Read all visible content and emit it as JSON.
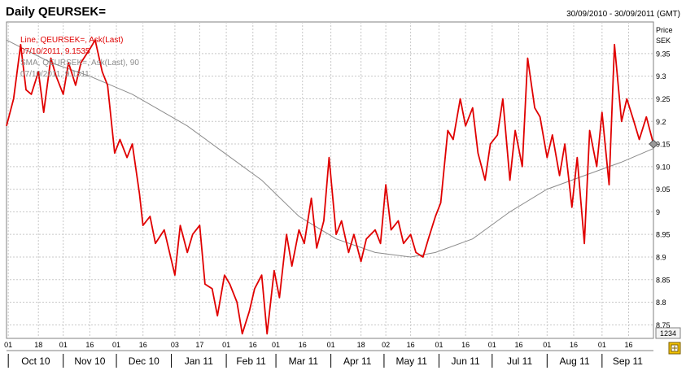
{
  "header": {
    "title": "Daily QEURSEK=",
    "date_range": "30/09/2010 - 30/09/2011 (GMT)"
  },
  "legend": {
    "line1": "Line, QEURSEK=, Ask(Last)",
    "line1_value": "07/10/2011, 9.1535",
    "line2": "SMA, QEURSEK=, Ask(Last), 90",
    "line2_value": "07/10/2011, 9.1311"
  },
  "axis": {
    "price_label": "Price",
    "currency_label": "SEK",
    "scale_box": "1234"
  },
  "colors": {
    "price_line": "#e00000",
    "sma_line": "#8c8c8c",
    "grid": "#c8c8c8",
    "marker": "#999999"
  },
  "icons": {
    "toolbar": "zoom-tool-icon"
  },
  "chart_data": {
    "type": "line",
    "title": "Daily QEURSEK=",
    "ylabel": "Price SEK",
    "ylim": [
      8.72,
      9.42
    ],
    "y_ticks": [
      "8.75",
      "8.8",
      "8.85",
      "8.9",
      "8.95",
      "9",
      "9.05",
      "9.10",
      "9.15",
      "9.2",
      "9.25",
      "9.3",
      "9.35"
    ],
    "x_tick_labels": [
      "01",
      "18",
      "01",
      "16",
      "01",
      "16",
      "03",
      "17",
      "01",
      "16",
      "01",
      "16",
      "01",
      "18",
      "02",
      "16",
      "01",
      "16",
      "01",
      "16",
      "01",
      "16",
      "01",
      "16"
    ],
    "month_labels": [
      "Oct 10",
      "Nov 10",
      "Dec 10",
      "Jan 11",
      "Feb 11",
      "Mar 11",
      "Apr 11",
      "May 11",
      "Jun 11",
      "Jul 11",
      "Aug 11",
      "Sep 11"
    ],
    "grid": true,
    "series": [
      {
        "name": "Line, QEURSEK=, Ask(Last)",
        "x": [
          "2010-09-30",
          "2010-10-04",
          "2010-10-08",
          "2010-10-11",
          "2010-10-14",
          "2010-10-18",
          "2010-10-21",
          "2010-10-25",
          "2010-10-28",
          "2010-11-01",
          "2010-11-04",
          "2010-11-08",
          "2010-11-11",
          "2010-11-16",
          "2010-11-19",
          "2010-11-23",
          "2010-11-26",
          "2010-11-30",
          "2010-12-03",
          "2010-12-07",
          "2010-12-10",
          "2010-12-14",
          "2010-12-16",
          "2010-12-20",
          "2010-12-23",
          "2010-12-28",
          "2011-01-03",
          "2011-01-06",
          "2011-01-10",
          "2011-01-13",
          "2011-01-17",
          "2011-01-20",
          "2011-01-24",
          "2011-01-27",
          "2011-01-31",
          "2011-02-03",
          "2011-02-07",
          "2011-02-10",
          "2011-02-14",
          "2011-02-17",
          "2011-02-21",
          "2011-02-24",
          "2011-02-28",
          "2011-03-03",
          "2011-03-07",
          "2011-03-10",
          "2011-03-14",
          "2011-03-17",
          "2011-03-21",
          "2011-03-24",
          "2011-03-28",
          "2011-03-31",
          "2011-04-04",
          "2011-04-07",
          "2011-04-11",
          "2011-04-14",
          "2011-04-18",
          "2011-04-21",
          "2011-04-26",
          "2011-04-29",
          "2011-05-02",
          "2011-05-05",
          "2011-05-09",
          "2011-05-12",
          "2011-05-16",
          "2011-05-19",
          "2011-05-23",
          "2011-05-26",
          "2011-05-30",
          "2011-06-02",
          "2011-06-06",
          "2011-06-09",
          "2011-06-13",
          "2011-06-16",
          "2011-06-20",
          "2011-06-23",
          "2011-06-27",
          "2011-06-30",
          "2011-07-04",
          "2011-07-07",
          "2011-07-11",
          "2011-07-14",
          "2011-07-18",
          "2011-07-21",
          "2011-07-25",
          "2011-07-28",
          "2011-08-01",
          "2011-08-04",
          "2011-08-08",
          "2011-08-11",
          "2011-08-15",
          "2011-08-18",
          "2011-08-22",
          "2011-08-25",
          "2011-08-29",
          "2011-09-01",
          "2011-09-05",
          "2011-09-08",
          "2011-09-12",
          "2011-09-15",
          "2011-09-19",
          "2011-09-22",
          "2011-09-26",
          "2011-09-30"
        ],
        "y": [
          9.19,
          9.25,
          9.37,
          9.27,
          9.26,
          9.31,
          9.22,
          9.34,
          9.3,
          9.26,
          9.33,
          9.28,
          9.33,
          9.36,
          9.38,
          9.31,
          9.28,
          9.13,
          9.16,
          9.12,
          9.15,
          9.04,
          8.97,
          8.99,
          8.93,
          8.96,
          8.86,
          8.97,
          8.91,
          8.95,
          8.97,
          8.84,
          8.83,
          8.77,
          8.86,
          8.84,
          8.8,
          8.73,
          8.78,
          8.83,
          8.86,
          8.73,
          8.87,
          8.81,
          8.95,
          8.88,
          8.96,
          8.93,
          9.03,
          8.92,
          8.98,
          9.12,
          8.95,
          8.98,
          8.91,
          8.95,
          8.89,
          8.94,
          8.96,
          8.93,
          9.06,
          8.96,
          8.98,
          8.93,
          8.95,
          8.91,
          8.9,
          8.94,
          8.99,
          9.02,
          9.18,
          9.16,
          9.25,
          9.19,
          9.23,
          9.13,
          9.07,
          9.15,
          9.17,
          9.25,
          9.07,
          9.18,
          9.1,
          9.34,
          9.23,
          9.21,
          9.12,
          9.17,
          9.08,
          9.15,
          9.01,
          9.12,
          8.93,
          9.18,
          9.1,
          9.22,
          9.06,
          9.37,
          9.2,
          9.25,
          9.2,
          9.16,
          9.21,
          9.15
        ]
      },
      {
        "name": "SMA, QEURSEK=, Ask(Last), 90",
        "x": [
          "2010-09-30",
          "2010-10-25",
          "2010-11-16",
          "2010-12-10",
          "2011-01-10",
          "2011-01-31",
          "2011-02-21",
          "2011-03-14",
          "2011-04-04",
          "2011-04-26",
          "2011-05-16",
          "2011-05-30",
          "2011-06-20",
          "2011-07-11",
          "2011-08-01",
          "2011-08-22",
          "2011-09-12",
          "2011-09-30"
        ],
        "y": [
          9.38,
          9.33,
          9.3,
          9.26,
          9.19,
          9.13,
          9.07,
          8.99,
          8.94,
          8.91,
          8.9,
          8.91,
          8.94,
          9.0,
          9.05,
          9.08,
          9.11,
          9.14
        ]
      }
    ],
    "last_value_marker": 9.15
  }
}
